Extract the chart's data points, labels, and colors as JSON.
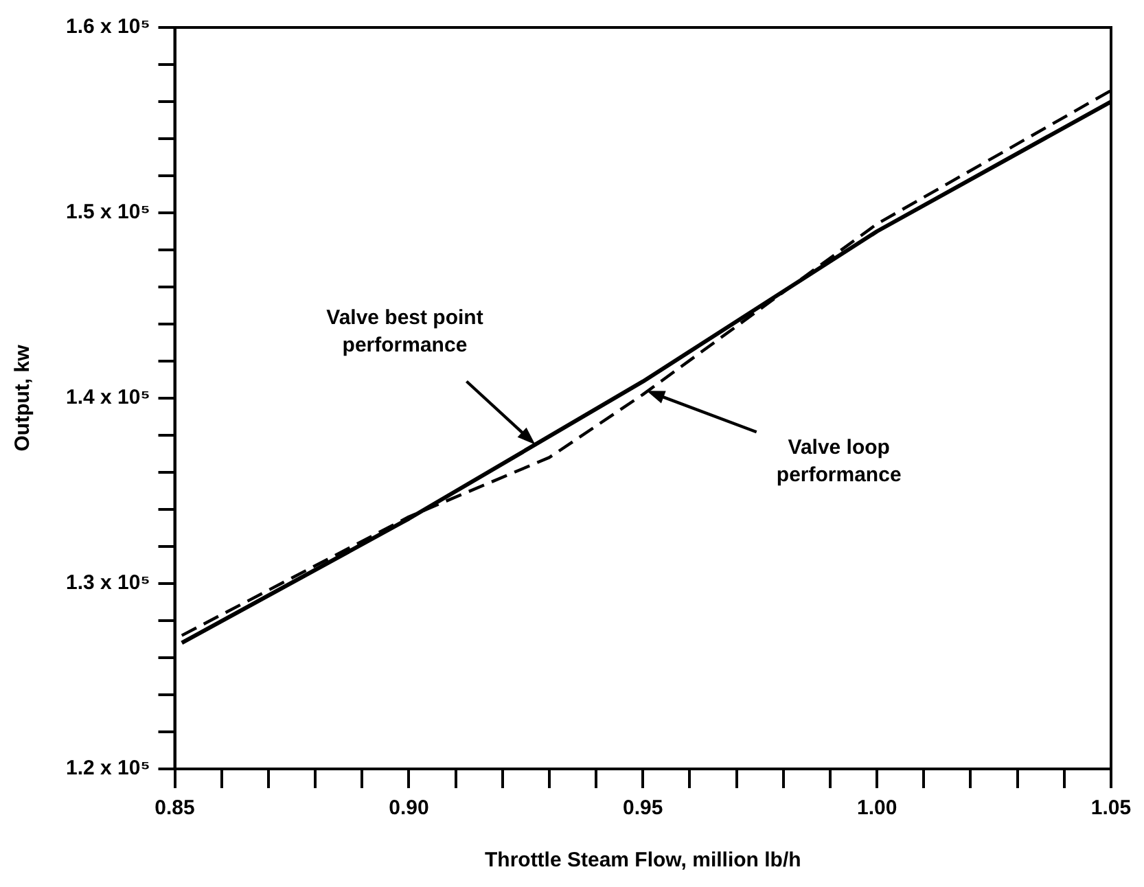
{
  "chart_data": {
    "type": "line",
    "xlabel": "Throttle Steam Flow, million lb/h",
    "ylabel": "Output, kw",
    "xlim": [
      0.85,
      1.05
    ],
    "xticks": [
      {
        "value": 0.85,
        "label": "0.85"
      },
      {
        "value": 0.86,
        "label": null
      },
      {
        "value": 0.87,
        "label": null
      },
      {
        "value": 0.88,
        "label": null
      },
      {
        "value": 0.89,
        "label": null
      },
      {
        "value": 0.9,
        "label": "0.90"
      },
      {
        "value": 0.91,
        "label": null
      },
      {
        "value": 0.92,
        "label": null
      },
      {
        "value": 0.93,
        "label": null
      },
      {
        "value": 0.94,
        "label": null
      },
      {
        "value": 0.95,
        "label": "0.95"
      },
      {
        "value": 0.96,
        "label": null
      },
      {
        "value": 0.97,
        "label": null
      },
      {
        "value": 0.98,
        "label": null
      },
      {
        "value": 0.99,
        "label": null
      },
      {
        "value": 1.0,
        "label": "1.00"
      },
      {
        "value": 1.01,
        "label": null
      },
      {
        "value": 1.02,
        "label": null
      },
      {
        "value": 1.03,
        "label": null
      },
      {
        "value": 1.04,
        "label": null
      },
      {
        "value": 1.05,
        "label": "1.05"
      }
    ],
    "ylim": [
      120000,
      160000
    ],
    "yticks": [
      {
        "value": 120000,
        "label": "1.2 x 10⁵"
      },
      {
        "value": 122000,
        "label": null
      },
      {
        "value": 124000,
        "label": null
      },
      {
        "value": 126000,
        "label": null
      },
      {
        "value": 128000,
        "label": null
      },
      {
        "value": 130000,
        "label": "1.3 x 10⁵"
      },
      {
        "value": 132000,
        "label": null
      },
      {
        "value": 134000,
        "label": null
      },
      {
        "value": 136000,
        "label": null
      },
      {
        "value": 138000,
        "label": null
      },
      {
        "value": 140000,
        "label": "1.4 x 10⁵"
      },
      {
        "value": 142000,
        "label": null
      },
      {
        "value": 144000,
        "label": null
      },
      {
        "value": 146000,
        "label": null
      },
      {
        "value": 148000,
        "label": null
      },
      {
        "value": 150000,
        "label": "1.5 x 10⁵"
      },
      {
        "value": 152000,
        "label": null
      },
      {
        "value": 154000,
        "label": null
      },
      {
        "value": 156000,
        "label": null
      },
      {
        "value": 158000,
        "label": null
      },
      {
        "value": 160000,
        "label": "1.6 x 10⁵"
      }
    ],
    "grid": false,
    "legend": false,
    "marker": "none",
    "series": [
      {
        "color": "#000000",
        "line_style": "solid",
        "x": [
          0.8515,
          0.9,
          0.95,
          1.0,
          1.05
        ],
        "values": [
          126800,
          133500,
          140900,
          149000,
          156000
        ]
      },
      {
        "color": "#000000",
        "line_style": "dashed",
        "x": [
          0.8515,
          0.9,
          0.93,
          0.95,
          1.0,
          1.05
        ],
        "values": [
          127200,
          133600,
          136800,
          140200,
          149400,
          156600
        ]
      }
    ],
    "annotations": [
      {
        "text": "Valve best point performance",
        "x": 0.927,
        "y": 137500
      },
      {
        "text": "Valve loop performance",
        "x": 0.9508,
        "y": 140400
      }
    ]
  }
}
